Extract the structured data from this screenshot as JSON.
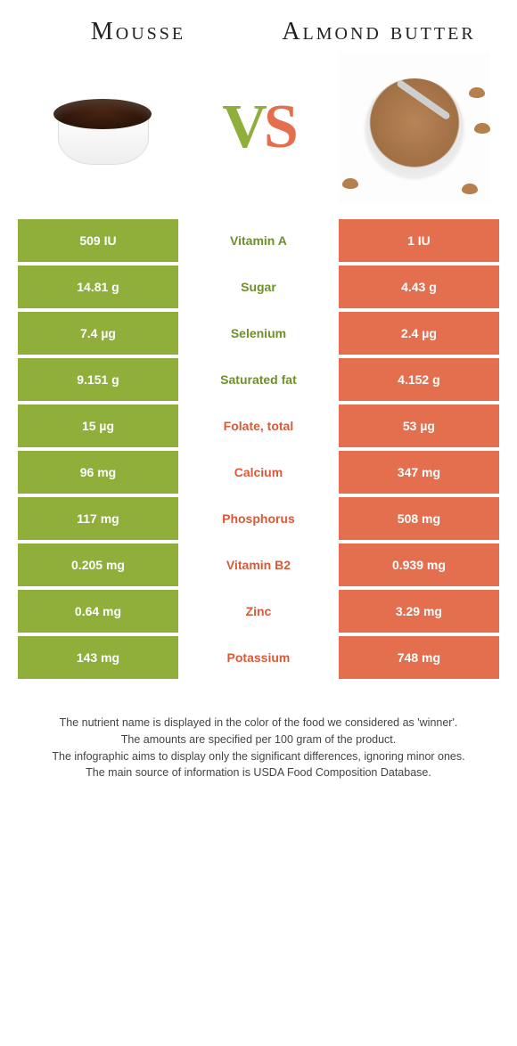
{
  "colors": {
    "left_bg": "#8fae3a",
    "right_bg": "#e36f4f",
    "left_text": "#6f8f2a",
    "right_text": "#d85a3a",
    "body_bg": "#ffffff"
  },
  "header": {
    "left_title": "Mousse",
    "right_title": "Almond butter",
    "vs_v": "V",
    "vs_s": "S"
  },
  "rows": [
    {
      "left": "509 IU",
      "mid": "Vitamin A",
      "right": "1 IU",
      "winner": "left"
    },
    {
      "left": "14.81 g",
      "mid": "Sugar",
      "right": "4.43 g",
      "winner": "left"
    },
    {
      "left": "7.4 µg",
      "mid": "Selenium",
      "right": "2.4 µg",
      "winner": "left"
    },
    {
      "left": "9.151 g",
      "mid": "Saturated fat",
      "right": "4.152 g",
      "winner": "left"
    },
    {
      "left": "15 µg",
      "mid": "Folate, total",
      "right": "53 µg",
      "winner": "right"
    },
    {
      "left": "96 mg",
      "mid": "Calcium",
      "right": "347 mg",
      "winner": "right"
    },
    {
      "left": "117 mg",
      "mid": "Phosphorus",
      "right": "508 mg",
      "winner": "right"
    },
    {
      "left": "0.205 mg",
      "mid": "Vitamin B2",
      "right": "0.939 mg",
      "winner": "right"
    },
    {
      "left": "0.64 mg",
      "mid": "Zinc",
      "right": "3.29 mg",
      "winner": "right"
    },
    {
      "left": "143 mg",
      "mid": "Potassium",
      "right": "748 mg",
      "winner": "right"
    }
  ],
  "footer": {
    "line1": "The nutrient name is displayed in the color of the food we considered as 'winner'.",
    "line2": "The amounts are specified per 100 gram of the product.",
    "line3": "The infographic aims to display only the significant differences, ignoring minor ones.",
    "line4": "The main source of information is USDA Food Composition Database."
  }
}
